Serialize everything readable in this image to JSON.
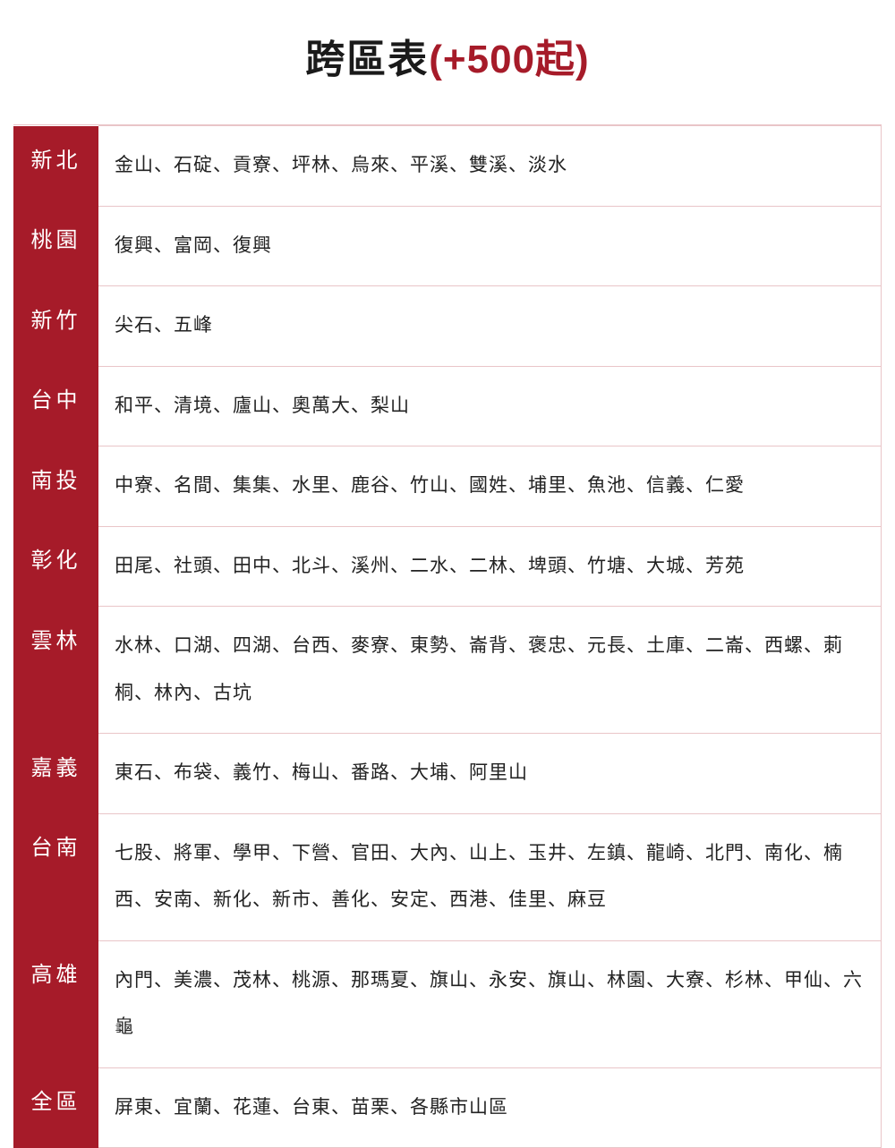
{
  "title": {
    "main": "跨區表",
    "suffix": "(+500起)"
  },
  "colors": {
    "header_bg": "#a61b29",
    "header_text": "#ffffff",
    "cell_text": "#222222",
    "border": "#e9c5c8",
    "title_main": "#1a1a1a",
    "title_suffix": "#a61b29"
  },
  "rows": [
    {
      "label": "新北",
      "content": "金山、石碇、貢寮、坪林、烏來、平溪、雙溪、淡水"
    },
    {
      "label": "桃園",
      "content": "復興、富岡、復興"
    },
    {
      "label": "新竹",
      "content": "尖石、五峰"
    },
    {
      "label": "台中",
      "content": "和平、清境、廬山、奧萬大、梨山"
    },
    {
      "label": "南投",
      "content": "中寮、名間、集集、水里、鹿谷、竹山、國姓、埔里、魚池、信義、仁愛"
    },
    {
      "label": "彰化",
      "content": "田尾、社頭、田中、北斗、溪州、二水、二林、埤頭、竹塘、大城、芳苑"
    },
    {
      "label": "雲林",
      "content": "水林、口湖、四湖、台西、麥寮、東勢、崙背、褒忠、元長、土庫、二崙、西螺、莿桐、林內、古坑"
    },
    {
      "label": "嘉義",
      "content": "東石、布袋、義竹、梅山、番路、大埔、阿里山"
    },
    {
      "label": "台南",
      "content": "七股、將軍、學甲、下營、官田、大內、山上、玉井、左鎮、龍崎、北門、南化、楠西、安南、新化、新市、善化、安定、西港、佳里、麻豆"
    },
    {
      "label": "高雄",
      "content": "內門、美濃、茂林、桃源、那瑪夏、旗山、永安、旗山、林園、大寮、杉林、甲仙、六龜"
    },
    {
      "label": "全區",
      "content": "屏東、宜蘭、花蓮、台東、苗栗、各縣市山區"
    }
  ]
}
